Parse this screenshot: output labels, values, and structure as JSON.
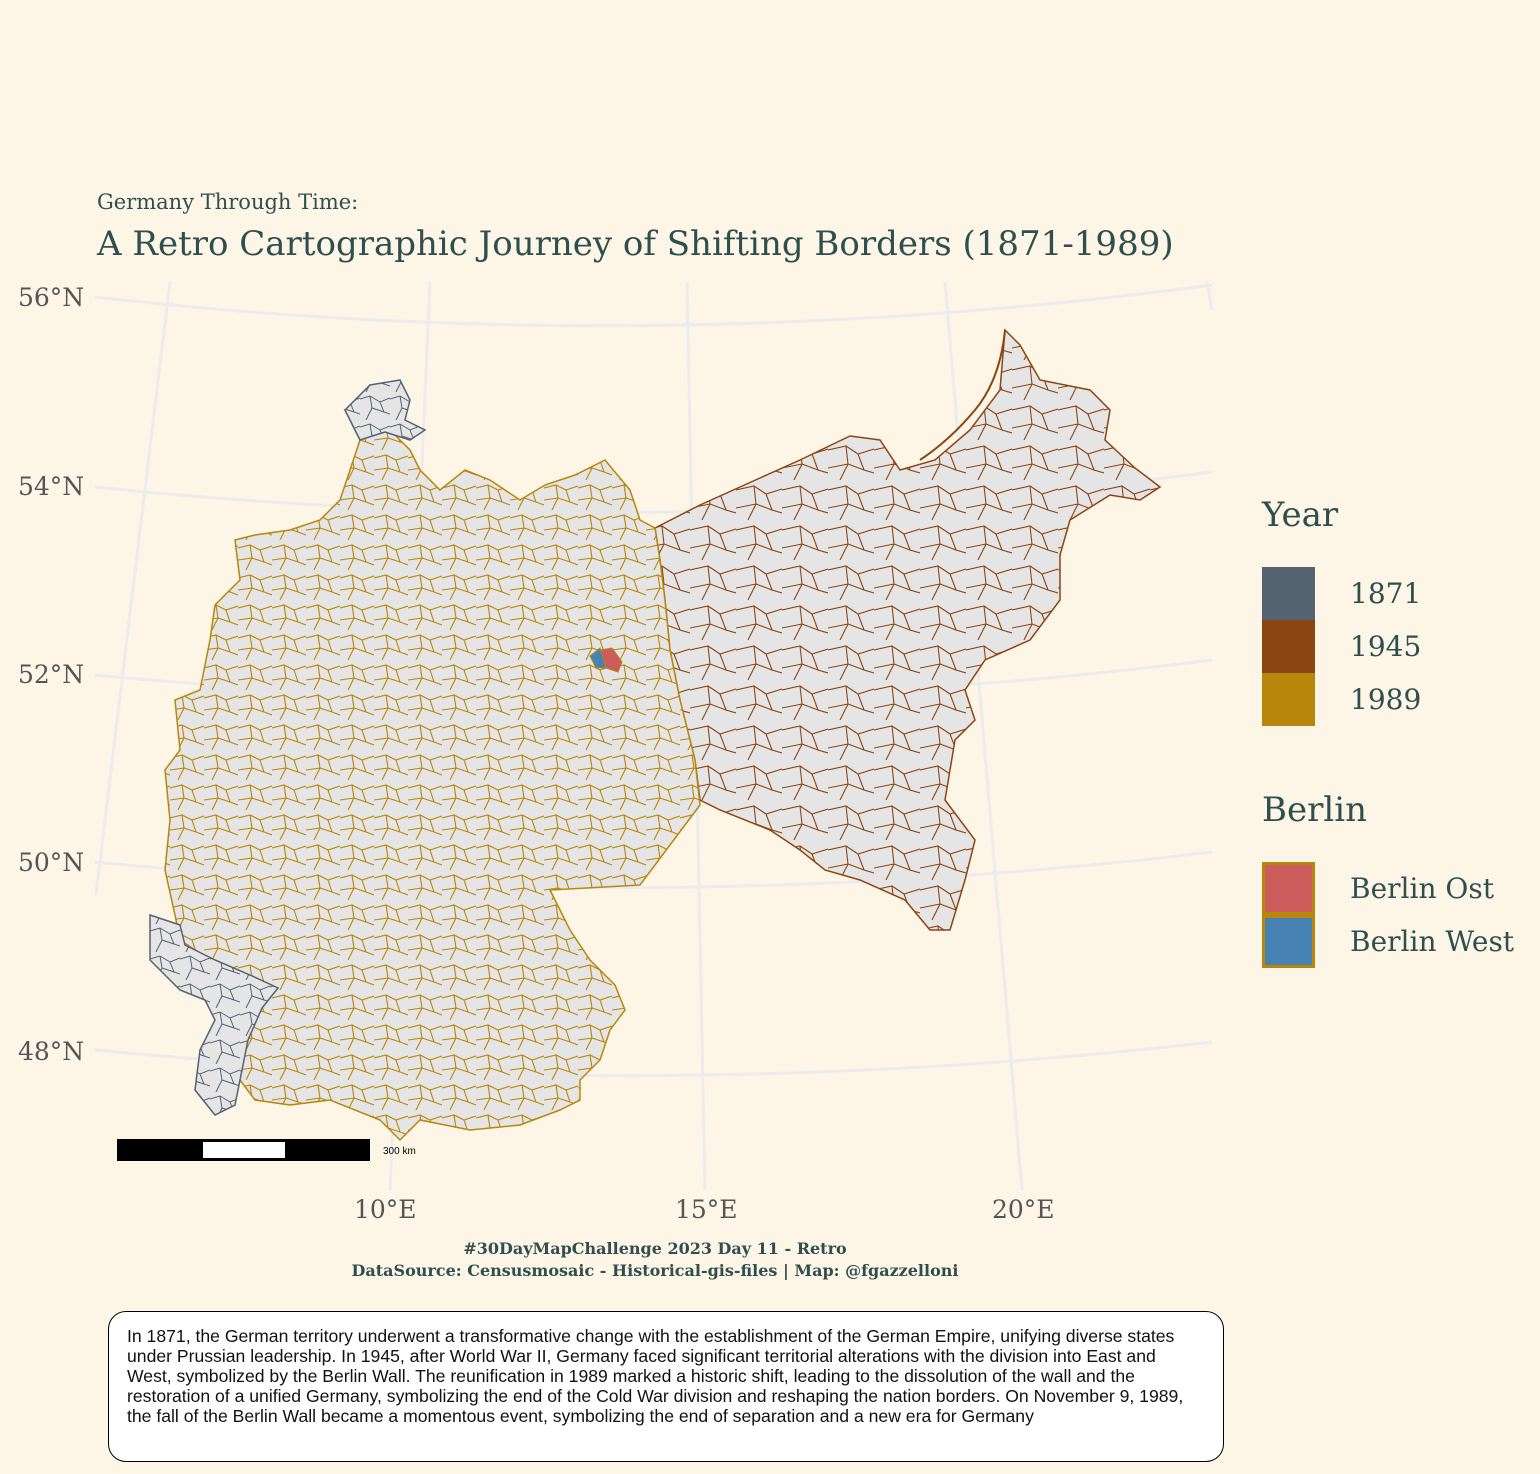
{
  "header": {
    "subtitle": "Germany Through Time:",
    "title": "A Retro Cartographic Journey of Shifting Borders (1871-1989)"
  },
  "map": {
    "latitude_labels": [
      "56°N",
      "54°N",
      "52°N",
      "50°N",
      "48°N"
    ],
    "longitude_labels": [
      "10°E",
      "15°E",
      "20°E"
    ],
    "scale_bar_label": "300 km",
    "colors": {
      "background": "#fdf5e6",
      "land_fill": "#e5e5e5",
      "graticule": "#ecebee",
      "border_1871": "#556270",
      "border_1945": "#8b4513",
      "border_1989": "#b8860b",
      "berlin_ost": "#cd5c5c",
      "berlin_west": "#4682b4"
    }
  },
  "legend_year": {
    "title": "Year",
    "items": [
      {
        "label": "1871",
        "color": "#556270"
      },
      {
        "label": "1945",
        "color": "#8b4513"
      },
      {
        "label": "1989",
        "color": "#b8860b"
      }
    ]
  },
  "legend_berlin": {
    "title": "Berlin",
    "items": [
      {
        "label": "Berlin Ost",
        "color": "#cd5c5c",
        "outline": "#b8860b"
      },
      {
        "label": "Berlin West",
        "color": "#4682b4",
        "outline": "#b8860b"
      }
    ]
  },
  "caption": {
    "line1": "#30DayMapChallenge 2023 Day 11 - Retro",
    "line2": "DataSource: Censusmosaic - Historical-gis-files | Map: @fgazzelloni"
  },
  "note": {
    "text": "In 1871, the German territory underwent a transformative change with the establishment of the German Empire, unifying diverse states under Prussian leadership. In 1945, after World War II, Germany faced significant territorial alterations with the division into East and West, symbolized by the Berlin Wall. The reunification in 1989 marked a historic shift, leading to the dissolution of the wall and the restoration of a unified Germany, symbolizing the end of the Cold War division and reshaping the nation borders. On November 9, 1989, the fall of the Berlin Wall became a momentous event, symbolizing the end of separation and a new era for Germany"
  }
}
